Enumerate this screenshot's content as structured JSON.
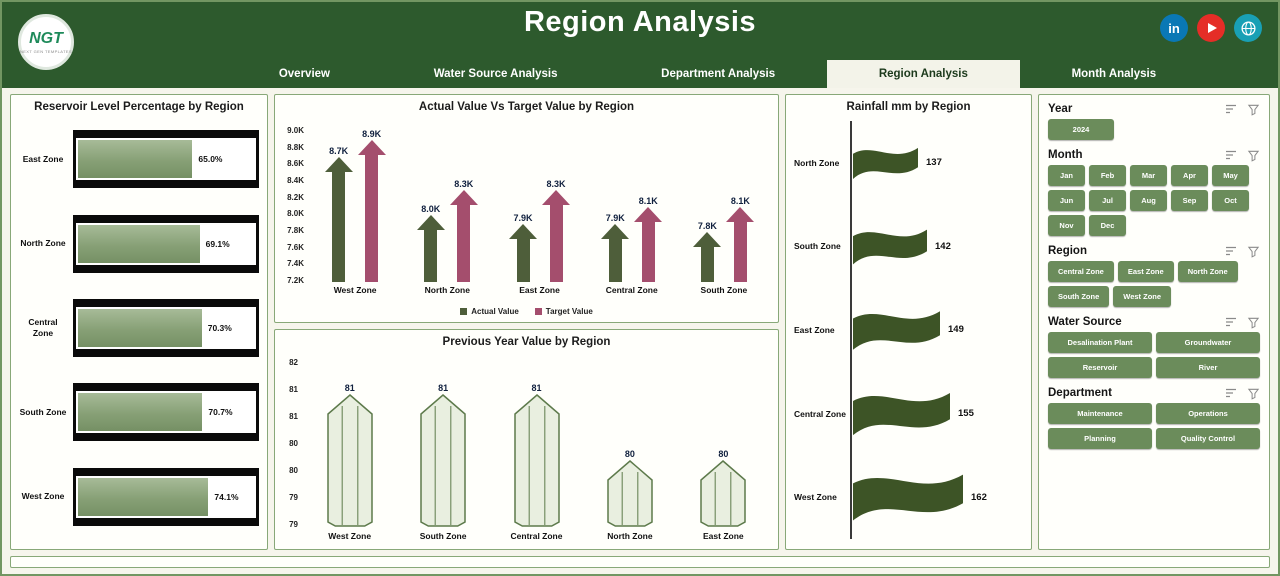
{
  "header": {
    "title": "Region Analysis",
    "logo": {
      "text": "NGT",
      "subtext": "NEXT GEN TEMPLATES"
    },
    "tabs": [
      {
        "label": "Overview",
        "active": false
      },
      {
        "label": "Water Source Analysis",
        "active": false
      },
      {
        "label": "Department Analysis",
        "active": false
      },
      {
        "label": "Region Analysis",
        "active": true
      },
      {
        "label": "Month Analysis",
        "active": false
      }
    ],
    "social": [
      {
        "name": "linkedin",
        "color": "#0a78b5",
        "glyph": "in"
      },
      {
        "name": "youtube",
        "color": "#e52d27",
        "glyph": "play"
      },
      {
        "name": "website",
        "color": "#19a0b5",
        "glyph": "globe"
      }
    ]
  },
  "colors": {
    "header_green": "#2d5a2d",
    "panel_border": "#88a878",
    "actual": "#4e5e3a",
    "target": "#a44e6d",
    "reservoir_fill": "#87a076",
    "pencil_fill": "#e9efe0",
    "pencil_stroke": "#5d7a4b",
    "flag_green": "#3d5426",
    "button_green": "#6b8c5b"
  },
  "chart_data": [
    {
      "type": "bar",
      "orientation": "horizontal",
      "title": "Reservoir Level Percentage by Region",
      "categories": [
        "East Zone",
        "North Zone",
        "Central Zone",
        "South Zone",
        "West Zone"
      ],
      "values": [
        65.0,
        69.1,
        70.3,
        70.7,
        74.1
      ],
      "labels": [
        "65.0%",
        "69.1%",
        "70.3%",
        "70.7%",
        "74.1%"
      ],
      "unit": "%",
      "xlim": [
        0,
        100
      ]
    },
    {
      "type": "bar",
      "title": "Actual Value Vs Target Value by Region",
      "categories": [
        "West Zone",
        "North Zone",
        "East Zone",
        "Central Zone",
        "South Zone"
      ],
      "series": [
        {
          "name": "Actual Value",
          "values": [
            8700,
            8000,
            7900,
            7900,
            7800
          ],
          "labels": [
            "8.7K",
            "8.0K",
            "7.9K",
            "7.9K",
            "7.8K"
          ]
        },
        {
          "name": "Target Value",
          "values": [
            8900,
            8300,
            8300,
            8100,
            8100
          ],
          "labels": [
            "8.9K",
            "8.3K",
            "8.3K",
            "8.1K",
            "8.1K"
          ]
        }
      ],
      "ylim": [
        7200,
        9000
      ],
      "yticks": [
        "9.0K",
        "8.8K",
        "8.6K",
        "8.4K",
        "8.2K",
        "8.0K",
        "7.8K",
        "7.6K",
        "7.4K",
        "7.2K"
      ],
      "legend_position": "bottom"
    },
    {
      "type": "bar",
      "title": "Previous Year Value by Region",
      "categories": [
        "West Zone",
        "South Zone",
        "Central Zone",
        "North Zone",
        "East Zone"
      ],
      "values": [
        81,
        81,
        81,
        80,
        80
      ],
      "labels": [
        "81",
        "81",
        "81",
        "80",
        "80"
      ],
      "ylim": [
        79,
        82
      ],
      "yticks": [
        "82",
        "81",
        "81",
        "80",
        "80",
        "79",
        "79"
      ]
    },
    {
      "type": "bar",
      "orientation": "horizontal",
      "title": "Rainfall mm by Region",
      "categories": [
        "North Zone",
        "South Zone",
        "East Zone",
        "Central Zone",
        "West Zone"
      ],
      "values": [
        137,
        142,
        149,
        155,
        162
      ],
      "labels": [
        "137",
        "142",
        "149",
        "155",
        "162"
      ],
      "unit": "mm"
    }
  ],
  "filters": {
    "sections": [
      {
        "label": "Year",
        "options": [
          "2024"
        ]
      },
      {
        "label": "Month",
        "options": [
          "Jan",
          "Feb",
          "Mar",
          "Apr",
          "May",
          "Jun",
          "Jul",
          "Aug",
          "Sep",
          "Oct",
          "Nov",
          "Dec"
        ]
      },
      {
        "label": "Region",
        "options": [
          "Central Zone",
          "East Zone",
          "North Zone",
          "South Zone",
          "West Zone"
        ]
      },
      {
        "label": "Water Source",
        "options": [
          "Desalination Plant",
          "Groundwater",
          "Reservoir",
          "River"
        ]
      },
      {
        "label": "Department",
        "options": [
          "Maintenance",
          "Operations",
          "Planning",
          "Quality Control"
        ]
      }
    ]
  }
}
